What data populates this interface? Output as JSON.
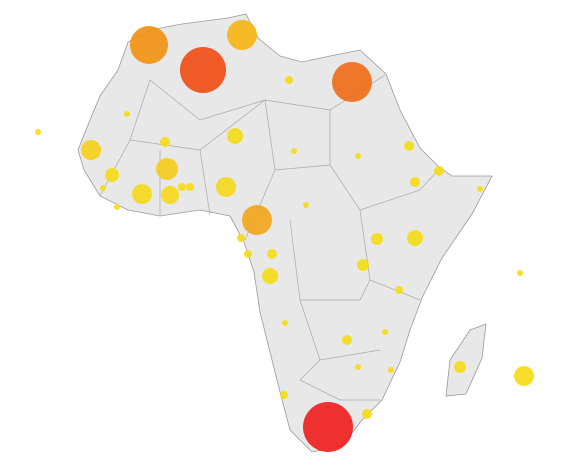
{
  "map": {
    "type": "bubble-map",
    "bubbles": [
      {
        "value": 361,
        "color": "#f29010"
      },
      {
        "value": 225,
        "color": "#f5b512"
      },
      {
        "value": 529,
        "color": "#f04a12"
      },
      {
        "value": 400,
        "color": "#ee6a14"
      },
      {
        "value": 625,
        "color": "#ee1c1c"
      },
      {
        "value": 225,
        "color": "#f2a51a"
      },
      {
        "value": 9,
        "color": "#f5dc14"
      },
      {
        "value": 9,
        "color": "#f5dc14"
      },
      {
        "value": 100,
        "color": "#f5d018"
      },
      {
        "value": 49,
        "color": "#f5dc14"
      },
      {
        "value": 9,
        "color": "#f5dc14"
      },
      {
        "value": 9,
        "color": "#f5dc14"
      },
      {
        "value": 100,
        "color": "#f5d818"
      },
      {
        "value": 121,
        "color": "#f5cc18"
      },
      {
        "value": 81,
        "color": "#f5d818"
      },
      {
        "value": 16,
        "color": "#f5dc14"
      },
      {
        "value": 16,
        "color": "#f5dc14"
      },
      {
        "value": 25,
        "color": "#f5dc14"
      },
      {
        "value": 64,
        "color": "#f5dc14"
      },
      {
        "value": 16,
        "color": "#f5dc14"
      },
      {
        "value": 9,
        "color": "#f5dc14"
      },
      {
        "value": 100,
        "color": "#f5d818"
      },
      {
        "value": 9,
        "color": "#f5dc14"
      },
      {
        "value": 16,
        "color": "#f5dc14"
      },
      {
        "value": 16,
        "color": "#f5dc14"
      },
      {
        "value": 25,
        "color": "#f5dc14"
      },
      {
        "value": 64,
        "color": "#f5dc14"
      },
      {
        "value": 9,
        "color": "#f5dc14"
      },
      {
        "value": 9,
        "color": "#f5dc14"
      },
      {
        "value": 25,
        "color": "#f5dc14"
      },
      {
        "value": 25,
        "color": "#f5dc14"
      },
      {
        "value": 25,
        "color": "#f5dc14"
      },
      {
        "value": 9,
        "color": "#f5dc14"
      },
      {
        "value": 36,
        "color": "#f5dc14"
      },
      {
        "value": 64,
        "color": "#f5dc14"
      },
      {
        "value": 36,
        "color": "#f5dc14"
      },
      {
        "value": 16,
        "color": "#f5dc14"
      },
      {
        "value": 9,
        "color": "#f5dc14"
      },
      {
        "value": 25,
        "color": "#f5dc14"
      },
      {
        "value": 9,
        "color": "#f5dc14"
      },
      {
        "value": 9,
        "color": "#f5dc14"
      },
      {
        "value": 9,
        "color": "#f5dc14"
      },
      {
        "value": 16,
        "color": "#f5dc14"
      },
      {
        "value": 25,
        "color": "#f5dc14"
      },
      {
        "value": 36,
        "color": "#f5dc14"
      },
      {
        "value": 100,
        "color": "#f5dc14"
      }
    ]
  }
}
